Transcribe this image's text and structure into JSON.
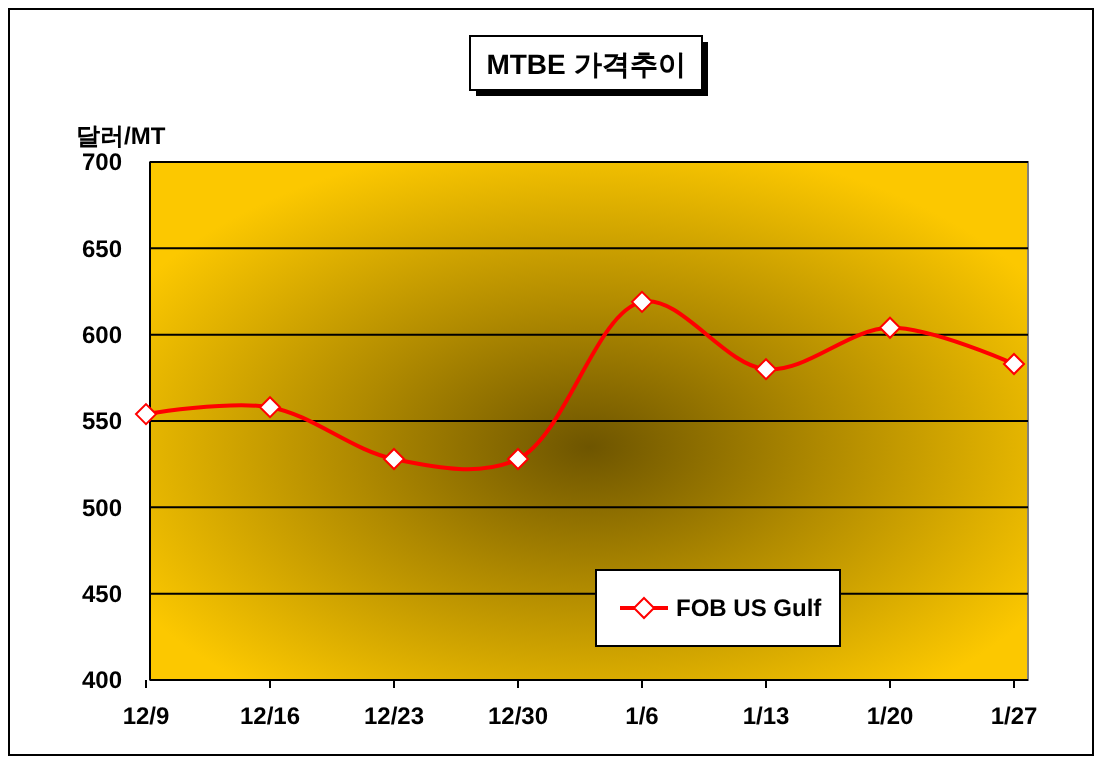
{
  "chart_data": {
    "type": "line",
    "title": "MTBE 가격추이",
    "ylabel": "달러/MT",
    "categories": [
      "12/9",
      "12/16",
      "12/23",
      "12/30",
      "1/6",
      "1/13",
      "1/20",
      "1/27"
    ],
    "series": [
      {
        "name": "FOB US Gulf",
        "color": "#ff0000",
        "values": [
          554,
          558,
          528,
          528,
          619,
          580,
          604,
          583
        ]
      }
    ],
    "ylim": [
      400,
      700
    ],
    "yticks": [
      400,
      450,
      500,
      550,
      600,
      650,
      700
    ],
    "grid": "y",
    "legend": "bottom right",
    "marker": "diamond",
    "line_style": "solid"
  }
}
